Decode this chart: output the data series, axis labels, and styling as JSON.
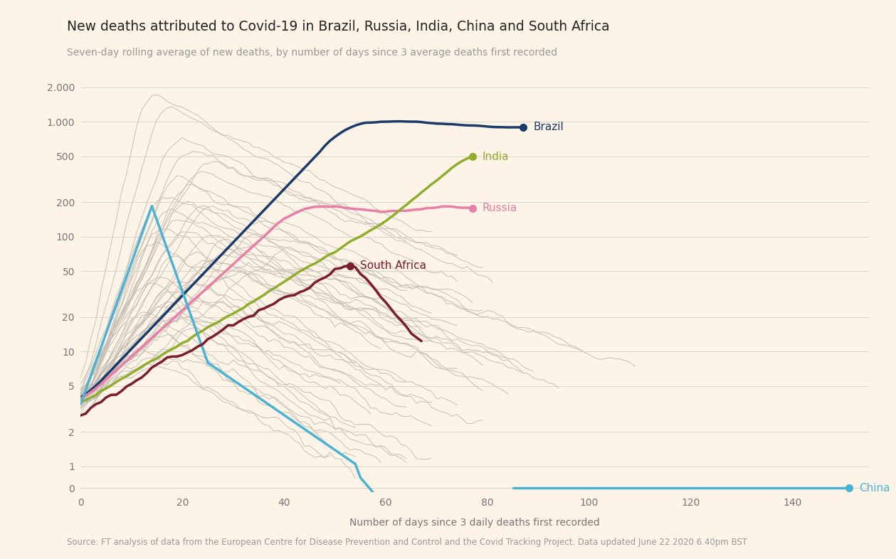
{
  "title": "New deaths attributed to Covid-19 in Brazil, Russia, India, China and South Africa",
  "subtitle": "Seven-day rolling average of new deaths, by number of days since 3 average deaths first recorded",
  "xlabel": "Number of days since 3 daily deaths first recorded",
  "source": "Source: FT analysis of data from the European Centre for Disease Prevention and Control and the Covid Tracking Project. Data updated June 22 2020 6.40pm BST",
  "background_color": "#fdf3e7",
  "yticks": [
    0,
    1,
    2,
    5,
    10,
    20,
    50,
    100,
    200,
    500,
    1000,
    2000
  ],
  "ytick_labels": [
    "0",
    "1",
    "2",
    "5",
    "10",
    "20",
    "50",
    "100",
    "200",
    "500",
    "1.000",
    "2.000"
  ],
  "xticks": [
    0,
    20,
    40,
    60,
    80,
    100,
    120,
    140
  ],
  "xlim": [
    0,
    155
  ],
  "ylim_log": [
    0.6,
    3000
  ],
  "countries": {
    "Brazil": {
      "color": "#1a3a6b",
      "lw": 2.5
    },
    "Russia": {
      "color": "#e87fa6",
      "lw": 2.5
    },
    "India": {
      "color": "#8fad2e",
      "lw": 2.5
    },
    "China": {
      "color": "#4ab3d4",
      "lw": 2.5
    },
    "South Africa": {
      "color": "#7b1c2c",
      "lw": 2.5
    }
  },
  "gray_color": "#c0bab0",
  "gray_lw": 0.7
}
